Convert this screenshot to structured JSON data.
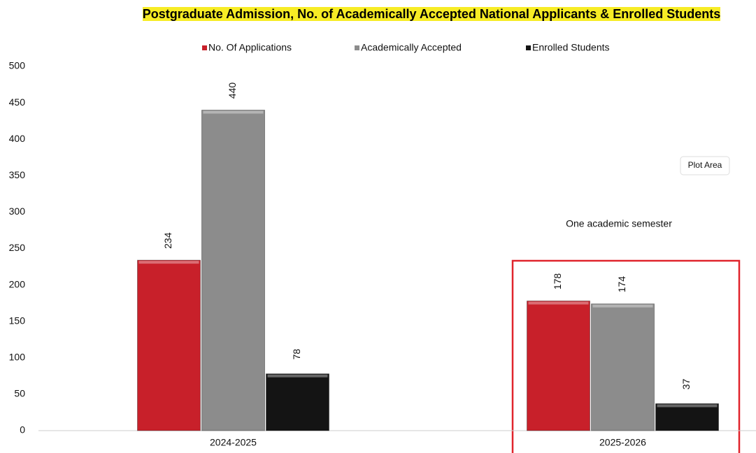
{
  "chart_data": {
    "type": "bar",
    "title": "Postgraduate Admission, No. of Academically Accepted National Applicants & Enrolled Students",
    "categories": [
      "2024-2025",
      "2025-2026"
    ],
    "series": [
      {
        "name": "No. Of Applications",
        "color": "#c8202a",
        "values": [
          234,
          178
        ]
      },
      {
        "name": "Academically Accepted",
        "color": "#8c8c8c",
        "values": [
          440,
          174
        ]
      },
      {
        "name": "Enrolled Students",
        "color": "#141414",
        "values": [
          78,
          37
        ]
      }
    ],
    "ylim": [
      0,
      500
    ],
    "yticks": [
      0,
      50,
      100,
      150,
      200,
      250,
      300,
      350,
      400,
      450,
      500
    ],
    "grid": false,
    "legend": "top",
    "annotation": "One academic semester",
    "tooltip": "Plot Area"
  }
}
